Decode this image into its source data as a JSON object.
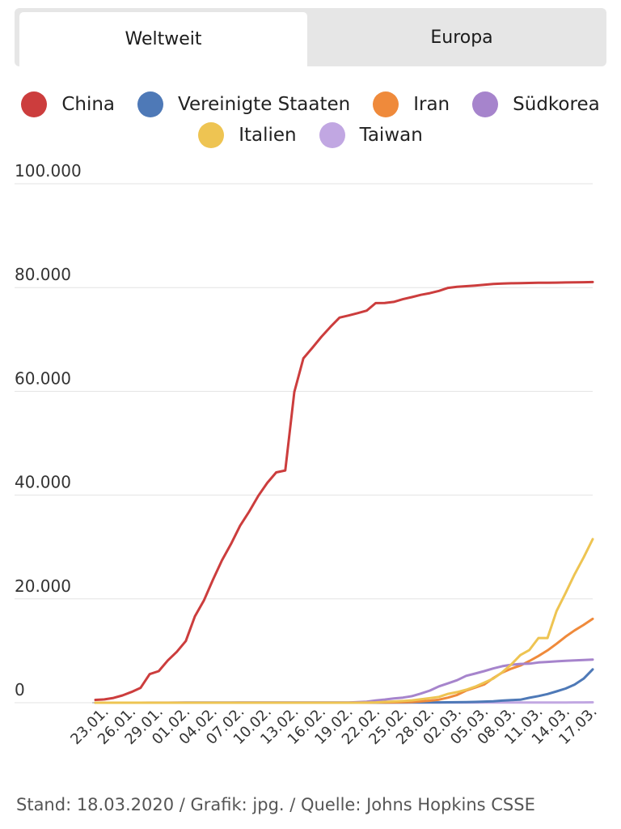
{
  "tabs": [
    {
      "label": "Weltweit",
      "active": true
    },
    {
      "label": "Europa",
      "active": false
    }
  ],
  "footer": "Stand: 18.03.2020 / Grafik: jpg. / Quelle: Johns Hopkins CSSE",
  "chart_data": {
    "type": "line",
    "title": "",
    "xlabel": "",
    "ylabel": "",
    "ylim": [
      0,
      100000
    ],
    "grid": true,
    "legend_position": "top",
    "yticks": [
      "0",
      "20.000",
      "40.000",
      "60.000",
      "80.000",
      "100.000"
    ],
    "ytick_values": [
      0,
      20000,
      40000,
      60000,
      80000,
      100000
    ],
    "xtick_labels": [
      "23.01.",
      "26.01.",
      "29.01.",
      "01.02.",
      "04.02.",
      "07.02.",
      "10.02.",
      "13.02.",
      "16.02.",
      "19.02.",
      "22.02.",
      "25.02.",
      "28.02.",
      "02.03.",
      "05.03.",
      "08.03.",
      "11.03.",
      "14.03.",
      "17.03."
    ],
    "x": [
      "22.01.",
      "23.01.",
      "24.01.",
      "25.01.",
      "26.01.",
      "27.01.",
      "28.01.",
      "29.01.",
      "30.01.",
      "31.01.",
      "01.02.",
      "02.02.",
      "03.02.",
      "04.02.",
      "05.02.",
      "06.02.",
      "07.02.",
      "08.02.",
      "09.02.",
      "10.02.",
      "11.02.",
      "12.02.",
      "13.02.",
      "14.02.",
      "15.02.",
      "16.02.",
      "17.02.",
      "18.02.",
      "19.02.",
      "20.02.",
      "21.02.",
      "22.02.",
      "23.02.",
      "24.02.",
      "25.02.",
      "26.02.",
      "27.02.",
      "28.02.",
      "29.02.",
      "01.03.",
      "02.03.",
      "03.03.",
      "04.03.",
      "05.03.",
      "06.03.",
      "07.03.",
      "08.03.",
      "09.03.",
      "10.03.",
      "11.03.",
      "12.03.",
      "13.03.",
      "14.03.",
      "15.03.",
      "16.03.",
      "17.03."
    ],
    "series": [
      {
        "name": "China",
        "color": "#cc3d3d",
        "values": [
          548,
          643,
          920,
          1406,
          2075,
          2877,
          5509,
          6087,
          8141,
          9802,
          11891,
          16630,
          19716,
          23707,
          27440,
          30587,
          34110,
          36814,
          39829,
          42354,
          44386,
          44759,
          59895,
          66358,
          68413,
          70513,
          72434,
          74211,
          74619,
          75077,
          75550,
          77001,
          77022,
          77241,
          77754,
          78166,
          78600,
          78928,
          79356,
          79932,
          80136,
          80261,
          80386,
          80537,
          80690,
          80770,
          80823,
          80860,
          80887,
          80921,
          80932,
          80945,
          80977,
          81003,
          81033,
          81058
        ]
      },
      {
        "name": "Vereinigte Staaten",
        "color": "#4e79b7",
        "values": [
          1,
          1,
          2,
          2,
          5,
          5,
          5,
          5,
          5,
          7,
          8,
          8,
          11,
          11,
          11,
          11,
          11,
          11,
          11,
          11,
          12,
          12,
          13,
          13,
          13,
          13,
          13,
          13,
          13,
          13,
          15,
          15,
          15,
          51,
          51,
          57,
          58,
          60,
          68,
          74,
          98,
          118,
          149,
          217,
          262,
          402,
          518,
          583,
          959,
          1281,
          1663,
          2179,
          2727,
          3499,
          4632,
          6421
        ]
      },
      {
        "name": "Iran",
        "color": "#ef8a3b",
        "values": [
          0,
          0,
          0,
          0,
          0,
          0,
          0,
          0,
          0,
          0,
          0,
          0,
          0,
          0,
          0,
          0,
          0,
          0,
          0,
          0,
          0,
          0,
          0,
          0,
          0,
          0,
          0,
          0,
          2,
          5,
          18,
          28,
          43,
          61,
          95,
          139,
          245,
          388,
          593,
          978,
          1501,
          2336,
          2922,
          3513,
          4747,
          5823,
          6566,
          7161,
          8042,
          9000,
          10075,
          11364,
          12729,
          13938,
          14991,
          16169
        ]
      },
      {
        "name": "Südkorea",
        "color": "#a684cc",
        "values": [
          1,
          1,
          2,
          2,
          3,
          4,
          4,
          4,
          4,
          11,
          12,
          15,
          15,
          16,
          19,
          23,
          24,
          24,
          25,
          27,
          28,
          28,
          28,
          28,
          28,
          29,
          30,
          31,
          31,
          104,
          204,
          433,
          602,
          833,
          977,
          1261,
          1766,
          2337,
          3150,
          3736,
          4335,
          5186,
          5621,
          6088,
          6593,
          7041,
          7314,
          7478,
          7513,
          7755,
          7869,
          7979,
          8086,
          8162,
          8236,
          8320
        ]
      },
      {
        "name": "Italien",
        "color": "#eec452",
        "values": [
          0,
          0,
          0,
          0,
          0,
          0,
          0,
          0,
          0,
          2,
          2,
          2,
          2,
          2,
          2,
          2,
          3,
          3,
          3,
          3,
          3,
          3,
          3,
          3,
          3,
          3,
          3,
          3,
          3,
          3,
          20,
          62,
          155,
          229,
          322,
          453,
          655,
          888,
          1128,
          1694,
          2036,
          2502,
          3089,
          3858,
          4636,
          5883,
          7375,
          9172,
          10149,
          12462,
          12462,
          17660,
          21157,
          24747,
          27980,
          31506
        ]
      },
      {
        "name": "Taiwan",
        "color": "#c1a7e2",
        "values": [
          1,
          1,
          3,
          3,
          4,
          5,
          8,
          8,
          9,
          10,
          10,
          10,
          10,
          11,
          11,
          16,
          16,
          17,
          18,
          18,
          18,
          18,
          18,
          18,
          18,
          20,
          22,
          22,
          23,
          24,
          26,
          26,
          28,
          30,
          31,
          32,
          32,
          34,
          39,
          40,
          41,
          42,
          42,
          44,
          45,
          45,
          45,
          45,
          47,
          48,
          49,
          50,
          53,
          59,
          67,
          77
        ]
      }
    ],
    "legend_rows": [
      [
        "China",
        "Vereinigte Staaten",
        "Iran",
        "Südkorea"
      ],
      [
        "Italien",
        "Taiwan"
      ]
    ]
  }
}
